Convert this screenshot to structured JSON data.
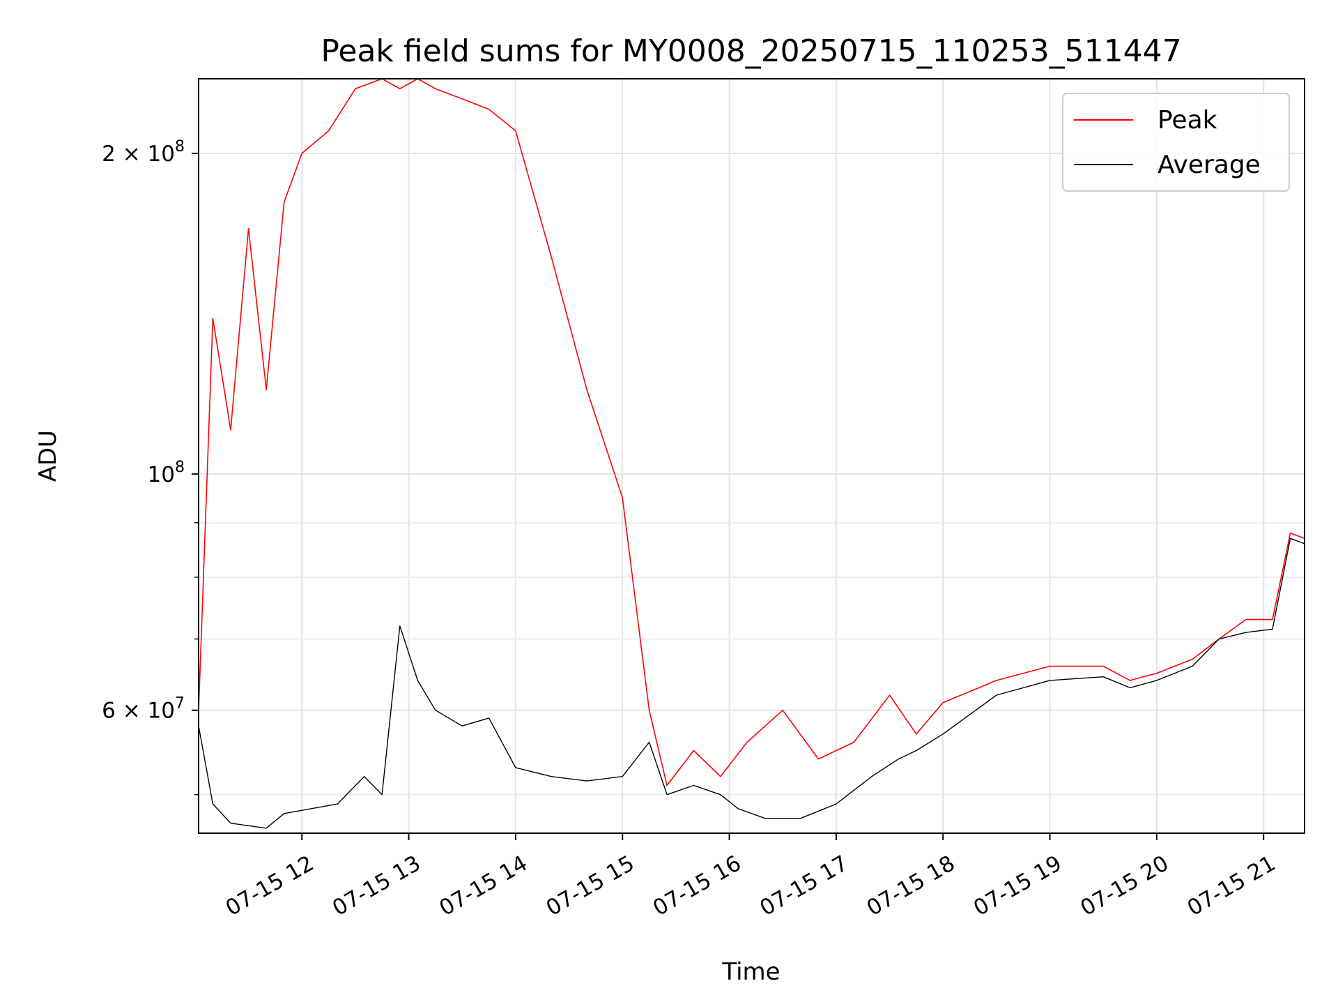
{
  "chart_data": {
    "type": "line",
    "title": "Peak field sums for MY0008_20250715_110253_511447",
    "xlabel": "Time",
    "ylabel": "ADU",
    "yscale": "log",
    "grid": true,
    "legend_position": "top-right",
    "xlim": [
      "2025-07-15 11:02",
      "2025-07-15 21:23"
    ],
    "ylim": [
      46000000,
      235000000
    ],
    "x_ticks": [
      {
        "value": "2025-07-15 12:00",
        "label": "07-15 12"
      },
      {
        "value": "2025-07-15 13:00",
        "label": "07-15 13"
      },
      {
        "value": "2025-07-15 14:00",
        "label": "07-15 14"
      },
      {
        "value": "2025-07-15 15:00",
        "label": "07-15 15"
      },
      {
        "value": "2025-07-15 16:00",
        "label": "07-15 16"
      },
      {
        "value": "2025-07-15 17:00",
        "label": "07-15 17"
      },
      {
        "value": "2025-07-15 18:00",
        "label": "07-15 18"
      },
      {
        "value": "2025-07-15 19:00",
        "label": "07-15 19"
      },
      {
        "value": "2025-07-15 20:00",
        "label": "07-15 20"
      },
      {
        "value": "2025-07-15 21:00",
        "label": "07-15 21"
      }
    ],
    "y_ticks": [
      {
        "value": 60000000,
        "mantissa": "6",
        "exponent": "7"
      },
      {
        "value": 100000000,
        "mantissa": "",
        "exponent": "8"
      },
      {
        "value": 200000000,
        "mantissa": "2",
        "exponent": "8"
      }
    ],
    "y_minor_ticks": [
      50000000,
      70000000,
      80000000,
      90000000
    ],
    "series": [
      {
        "name": "Peak",
        "color": "#ff0000",
        "x": [
          "2025-07-15 11:02",
          "2025-07-15 11:10",
          "2025-07-15 11:20",
          "2025-07-15 11:30",
          "2025-07-15 11:40",
          "2025-07-15 11:50",
          "2025-07-15 12:00",
          "2025-07-15 12:15",
          "2025-07-15 12:30",
          "2025-07-15 12:45",
          "2025-07-15 12:55",
          "2025-07-15 13:05",
          "2025-07-15 13:15",
          "2025-07-15 13:30",
          "2025-07-15 13:45",
          "2025-07-15 14:00",
          "2025-07-15 14:20",
          "2025-07-15 14:40",
          "2025-07-15 15:00",
          "2025-07-15 15:15",
          "2025-07-15 15:25",
          "2025-07-15 15:40",
          "2025-07-15 15:55",
          "2025-07-15 16:10",
          "2025-07-15 16:30",
          "2025-07-15 16:50",
          "2025-07-15 17:10",
          "2025-07-15 17:30",
          "2025-07-15 17:45",
          "2025-07-15 18:00",
          "2025-07-15 18:30",
          "2025-07-15 19:00",
          "2025-07-15 19:30",
          "2025-07-15 19:45",
          "2025-07-15 20:00",
          "2025-07-15 20:20",
          "2025-07-15 20:35",
          "2025-07-15 20:50",
          "2025-07-15 21:05",
          "2025-07-15 21:15",
          "2025-07-15 21:23"
        ],
        "y": [
          60000000,
          140000000,
          110000000,
          170000000,
          120000000,
          180000000,
          200000000,
          210000000,
          230000000,
          235000000,
          230000000,
          235000000,
          230000000,
          225000000,
          220000000,
          210000000,
          160000000,
          120000000,
          95000000,
          60000000,
          51000000,
          55000000,
          52000000,
          56000000,
          60000000,
          54000000,
          56000000,
          62000000,
          57000000,
          61000000,
          64000000,
          66000000,
          66000000,
          64000000,
          65000000,
          67000000,
          70000000,
          73000000,
          73000000,
          88000000,
          87000000
        ]
      },
      {
        "name": "Average",
        "color": "#000000",
        "x": [
          "2025-07-15 11:02",
          "2025-07-15 11:10",
          "2025-07-15 11:20",
          "2025-07-15 11:40",
          "2025-07-15 11:50",
          "2025-07-15 12:05",
          "2025-07-15 12:20",
          "2025-07-15 12:35",
          "2025-07-15 12:45",
          "2025-07-15 12:55",
          "2025-07-15 13:05",
          "2025-07-15 13:15",
          "2025-07-15 13:30",
          "2025-07-15 13:45",
          "2025-07-15 14:00",
          "2025-07-15 14:20",
          "2025-07-15 14:40",
          "2025-07-15 15:00",
          "2025-07-15 15:15",
          "2025-07-15 15:25",
          "2025-07-15 15:40",
          "2025-07-15 15:55",
          "2025-07-15 16:05",
          "2025-07-15 16:20",
          "2025-07-15 16:40",
          "2025-07-15 17:00",
          "2025-07-15 17:20",
          "2025-07-15 17:35",
          "2025-07-15 17:45",
          "2025-07-15 18:00",
          "2025-07-15 18:30",
          "2025-07-15 19:00",
          "2025-07-15 19:30",
          "2025-07-15 19:45",
          "2025-07-15 20:00",
          "2025-07-15 20:20",
          "2025-07-15 20:35",
          "2025-07-15 20:50",
          "2025-07-15 21:05",
          "2025-07-15 21:15",
          "2025-07-15 21:23"
        ],
        "y": [
          58000000,
          49000000,
          47000000,
          46500000,
          48000000,
          48500000,
          49000000,
          52000000,
          50000000,
          72000000,
          64000000,
          60000000,
          58000000,
          59000000,
          53000000,
          52000000,
          51500000,
          52000000,
          56000000,
          50000000,
          51000000,
          50000000,
          48500000,
          47500000,
          47500000,
          49000000,
          52000000,
          54000000,
          55000000,
          57000000,
          62000000,
          64000000,
          64500000,
          63000000,
          64000000,
          66000000,
          70000000,
          71000000,
          71500000,
          87000000,
          86000000
        ]
      }
    ],
    "legend": [
      {
        "name": "Peak",
        "color": "#ff0000"
      },
      {
        "name": "Average",
        "color": "#000000"
      }
    ]
  }
}
